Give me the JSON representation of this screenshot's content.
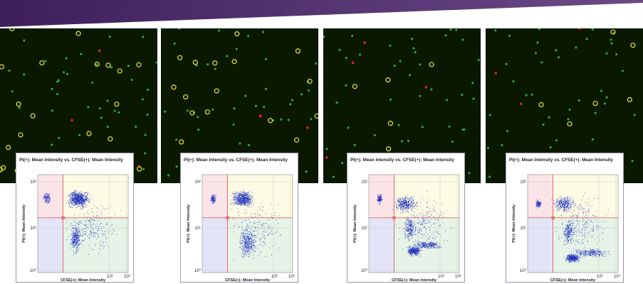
{
  "panels": [
    {
      "plot": {
        "title": "PI(+): Mean Intensity vs. CFSE(+): Mean Intensity",
        "y_label": "PI(+): Mean Intensity",
        "x_label": "CFSE(+): Mean Intensity",
        "yticks": [
          "10²",
          "10¹",
          "10⁰"
        ],
        "xticks": [
          "10²",
          "10³"
        ]
      }
    },
    {
      "plot": {
        "title": "PI(+): Mean Intensity vs. CFSE(+): Mean Intensity",
        "y_label": "PI(+): Mean Intensity",
        "x_label": "CFSE(+): Mean Intensity",
        "yticks": [
          "10²",
          "10¹",
          "10⁰"
        ],
        "xticks": [
          "10²",
          "10³"
        ]
      }
    },
    {
      "plot": {
        "title": "PI(+): Mean Intensity vs. CFSE(+): Mean Intensity",
        "y_label": "PI(+): Mean Intensity",
        "x_label": "CFSE(+): Mean Intensity",
        "yticks": [
          "10²",
          "10¹",
          "10⁰"
        ],
        "xticks": [
          "10²",
          "10³"
        ]
      }
    },
    {
      "plot": {
        "title": "PI(+): Mean Intensity vs. CFSE(+): Mean Intensity",
        "y_label": "PI(+): Mean Intensity",
        "x_label": "CFSE(+): Mean Intensity",
        "yticks": [
          "10²",
          "10¹",
          "10⁰"
        ],
        "xticks": [
          "10²",
          "10³"
        ]
      }
    }
  ]
}
